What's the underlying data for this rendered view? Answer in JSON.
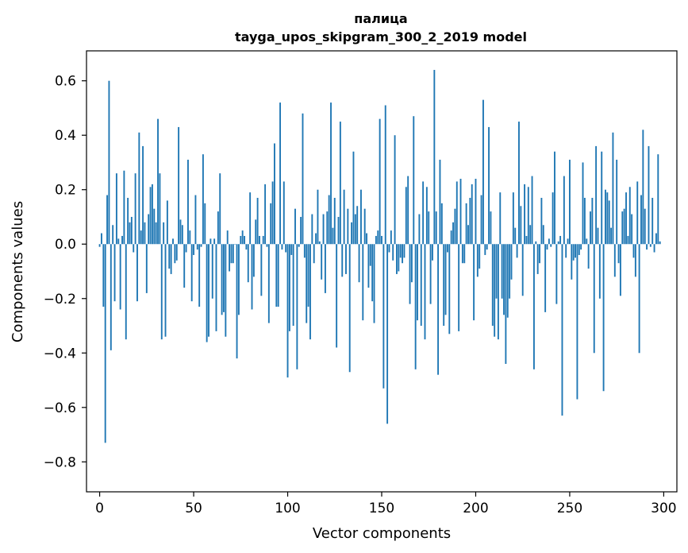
{
  "chart_data": {
    "type": "bar",
    "title": "палица",
    "subtitle": "tayga_upos_skipgram_300_2_2019 model",
    "xlabel": "Vector components",
    "ylabel": "Components values",
    "xlim": [
      -7,
      307
    ],
    "ylim": [
      -0.91,
      0.71
    ],
    "xticks": [
      0,
      50,
      100,
      150,
      200,
      250,
      300
    ],
    "xtick_labels": [
      "0",
      "50",
      "100",
      "150",
      "200",
      "250",
      "300"
    ],
    "yticks": [
      -0.8,
      -0.6,
      -0.4,
      -0.2,
      0.0,
      0.2,
      0.4,
      0.6
    ],
    "ytick_labels": [
      "−0.8",
      "−0.6",
      "−0.4",
      "−0.2",
      "0.0",
      "0.2",
      "0.4",
      "0.6"
    ],
    "grid": false,
    "bar_color": "#1f77b4",
    "x": "0..299 (component index)",
    "values": [
      -0.01,
      0.04,
      -0.23,
      -0.73,
      0.18,
      0.6,
      -0.39,
      0.07,
      -0.21,
      0.26,
      0.02,
      -0.24,
      0.03,
      0.27,
      -0.35,
      0.17,
      0.08,
      0.1,
      -0.03,
      0.26,
      -0.21,
      0.41,
      0.05,
      0.36,
      0.08,
      -0.18,
      0.11,
      0.21,
      0.22,
      0.13,
      0.08,
      0.46,
      0.26,
      -0.35,
      0.08,
      -0.34,
      0.16,
      -0.09,
      -0.11,
      0.02,
      -0.07,
      -0.06,
      0.43,
      0.09,
      0.07,
      -0.16,
      -0.03,
      0.31,
      0.05,
      -0.21,
      -0.04,
      0.18,
      -0.02,
      -0.23,
      -0.01,
      0.33,
      0.15,
      -0.36,
      -0.34,
      0.02,
      -0.2,
      0.02,
      -0.32,
      0.12,
      0.26,
      -0.26,
      -0.25,
      -0.34,
      0.05,
      -0.1,
      -0.07,
      -0.07,
      0.0,
      -0.42,
      -0.26,
      0.03,
      0.05,
      0.03,
      -0.02,
      -0.14,
      0.19,
      -0.24,
      -0.12,
      0.09,
      0.17,
      0.03,
      -0.19,
      0.03,
      0.22,
      -0.01,
      -0.29,
      0.15,
      0.23,
      0.37,
      -0.23,
      -0.23,
      0.52,
      -0.02,
      0.23,
      -0.03,
      -0.49,
      -0.32,
      -0.04,
      -0.3,
      0.13,
      -0.46,
      -0.01,
      0.1,
      0.48,
      -0.05,
      -0.29,
      -0.23,
      -0.35,
      0.11,
      -0.07,
      0.04,
      0.2,
      0.01,
      -0.13,
      0.11,
      -0.18,
      0.12,
      0.18,
      0.52,
      0.06,
      0.17,
      -0.38,
      0.1,
      0.45,
      -0.12,
      0.2,
      -0.11,
      0.13,
      -0.47,
      0.08,
      0.34,
      0.11,
      0.14,
      -0.14,
      0.2,
      -0.28,
      0.13,
      0.04,
      -0.16,
      -0.08,
      -0.21,
      -0.29,
      0.03,
      0.05,
      0.46,
      0.03,
      -0.53,
      0.51,
      -0.66,
      -0.03,
      0.05,
      -0.06,
      0.4,
      -0.11,
      -0.1,
      -0.05,
      -0.07,
      -0.05,
      0.21,
      0.25,
      -0.22,
      -0.14,
      0.47,
      -0.46,
      -0.28,
      0.11,
      -0.3,
      0.23,
      -0.35,
      0.21,
      0.12,
      -0.22,
      -0.06,
      0.64,
      0.12,
      -0.48,
      0.31,
      0.15,
      -0.3,
      -0.26,
      -0.03,
      -0.33,
      0.05,
      0.08,
      0.13,
      0.23,
      -0.32,
      0.24,
      -0.07,
      -0.07,
      0.15,
      0.07,
      0.17,
      0.22,
      -0.28,
      0.24,
      -0.12,
      -0.09,
      0.18,
      0.53,
      -0.04,
      -0.02,
      0.43,
      0.12,
      -0.3,
      -0.34,
      -0.2,
      -0.35,
      0.19,
      -0.2,
      -0.26,
      -0.44,
      -0.27,
      -0.2,
      -0.13,
      0.19,
      0.06,
      -0.05,
      0.45,
      0.14,
      -0.19,
      0.22,
      0.03,
      0.21,
      0.07,
      0.25,
      -0.46,
      0.01,
      -0.11,
      -0.07,
      0.17,
      0.07,
      -0.25,
      -0.02,
      0.02,
      -0.01,
      0.19,
      0.34,
      -0.22,
      0.01,
      0.03,
      -0.63,
      0.25,
      -0.05,
      0.02,
      0.31,
      -0.13,
      -0.06,
      -0.05,
      -0.57,
      -0.04,
      -0.02,
      0.3,
      0.17,
      0.02,
      -0.09,
      0.12,
      0.17,
      -0.4,
      0.36,
      0.06,
      -0.2,
      0.34,
      -0.54,
      0.2,
      0.19,
      0.16,
      0.06,
      0.41,
      -0.12,
      0.31,
      -0.07,
      -0.19,
      0.12,
      0.13,
      0.19,
      0.03,
      0.21,
      0.11,
      -0.05,
      -0.12,
      0.23,
      -0.4,
      0.18,
      0.42,
      0.13,
      -0.02,
      0.36,
      -0.01,
      0.17,
      -0.03,
      0.04,
      0.33,
      0.01
    ]
  }
}
